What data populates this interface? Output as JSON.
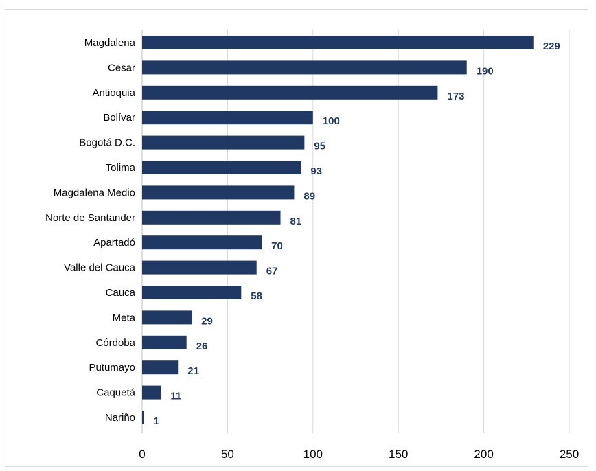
{
  "chart_data": {
    "type": "bar",
    "orientation": "horizontal",
    "title": "",
    "xlabel": "",
    "ylabel": "",
    "categories": [
      "Magdalena",
      "Cesar",
      "Antioquia",
      "Bolívar",
      "Bogotá D.C.",
      "Tolima",
      "Magdalena Medio",
      "Norte de Santander",
      "Apartadó",
      "Valle del Cauca",
      "Cauca",
      "Meta",
      "Córdoba",
      "Putumayo",
      "Caquetá",
      "Nariño"
    ],
    "values": [
      229,
      190,
      173,
      100,
      95,
      93,
      89,
      81,
      70,
      67,
      58,
      29,
      26,
      21,
      11,
      1
    ],
    "xlim": [
      0,
      250
    ],
    "xticks": [
      0,
      50,
      100,
      150,
      200,
      250
    ],
    "grid": "vertical",
    "legend": "none",
    "data_labels": true,
    "colors": {
      "bar": "#1f3864",
      "label": "#1f3864",
      "grid": "#d9d9d9",
      "axis": "#bfbfbf"
    }
  }
}
